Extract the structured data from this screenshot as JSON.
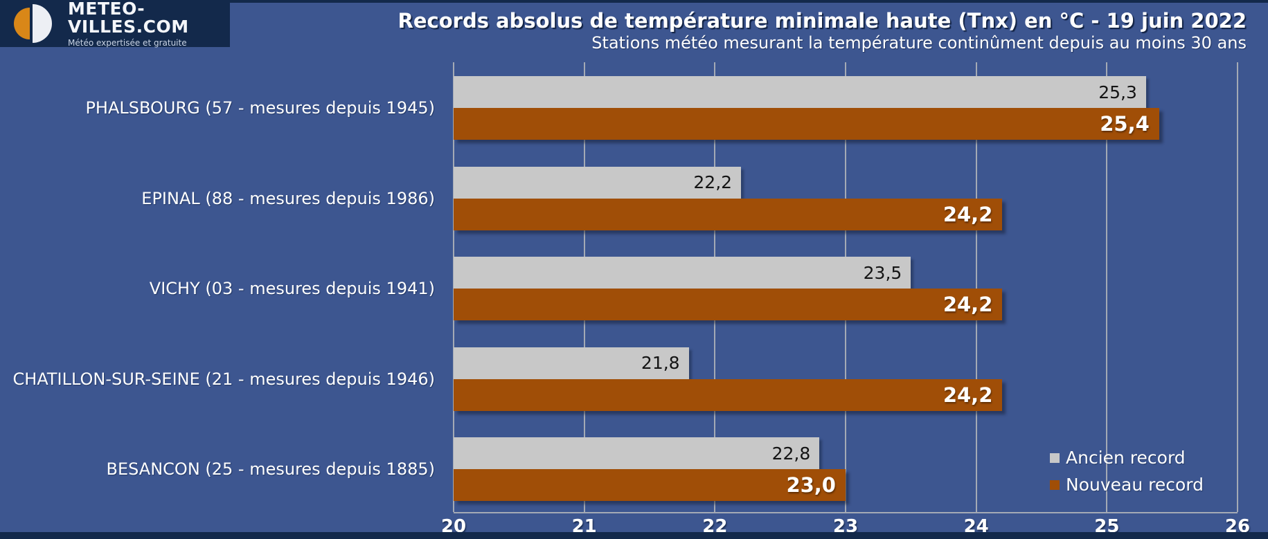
{
  "logo": {
    "brand": "METEO-VILLES.COM",
    "tagline": "Météo expertisée et gratuite"
  },
  "header": {
    "title": "Records absolus de température minimale haute (Tnx) en °C - 19 juin 2022",
    "subtitle": "Stations météo mesurant la température continûment depuis au moins 30 ans"
  },
  "chart_data": {
    "type": "bar",
    "orientation": "horizontal",
    "title": "Records absolus de température minimale haute (Tnx) en °C - 19 juin 2022",
    "subtitle": "Stations météo mesurant la température continûment depuis au moins 30 ans",
    "categories": [
      "PHALSBOURG (57 - mesures depuis 1945)",
      "EPINAL (88 - mesures depuis 1986)",
      "VICHY (03 - mesures depuis 1941)",
      "CHATILLON-SUR-SEINE (21 - mesures depuis 1946)",
      "BESANCON (25 - mesures depuis 1885)"
    ],
    "series": [
      {
        "name": "Ancien record",
        "color": "#C8C8C8",
        "values": [
          25.3,
          22.2,
          23.5,
          21.8,
          22.8
        ],
        "value_labels": [
          "25,3",
          "22,2",
          "23,5",
          "21,8",
          "22,8"
        ]
      },
      {
        "name": "Nouveau record",
        "color": "#A04E07",
        "values": [
          25.4,
          24.2,
          24.2,
          24.2,
          23.0
        ],
        "value_labels": [
          "25,4",
          "24,2",
          "24,2",
          "24,2",
          "23,0"
        ]
      }
    ],
    "xlim": [
      20,
      26
    ],
    "x_ticks": [
      "20",
      "21",
      "22",
      "23",
      "24",
      "25",
      "26"
    ],
    "grid": true,
    "legend_position": "bottom-right",
    "legend": [
      "Ancien record",
      "Nouveau record"
    ]
  },
  "colors": {
    "background": "#3D5690",
    "banner_navy": "#13294B",
    "old_record": "#C8C8C8",
    "new_record": "#A04E07",
    "gridline": "#A4AAB5",
    "logo_orange": "#D98718"
  }
}
